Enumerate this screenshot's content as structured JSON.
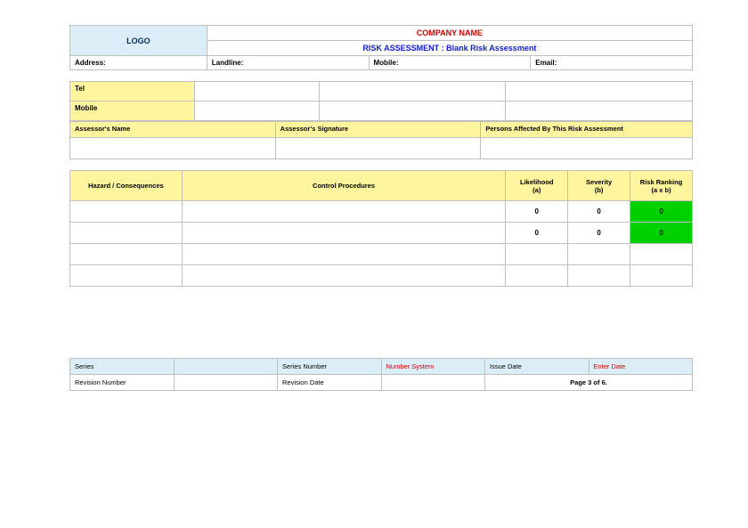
{
  "colors": {
    "header_blue_bg": "#dbeef7",
    "yellow_bg": "#fff59e",
    "green_bg": "#00d000",
    "company_red": "#d40000",
    "title_blue": "#1020d0",
    "logo_text": "#0a2a5a",
    "border": "#bfbfbf"
  },
  "header": {
    "logo_text": "LOGO",
    "company_name": "COMPANY NAME",
    "doc_title": "RISK ASSESSMENT : Blank Risk Assessment",
    "address_label": "Address:",
    "landline_label": "Landline:",
    "mobile_label": "Mobile:",
    "email_label": "Email:"
  },
  "contact_block": {
    "tel_label": "Tel",
    "mobile_label": "Mobile"
  },
  "assessor_block": {
    "name_label": "Assessor's Name",
    "sig_label": "Assessor's Signature",
    "persons_label": "Persons Affected By This Risk Assessment"
  },
  "hazard_table": {
    "type": "table",
    "columns": [
      {
        "key": "hazard",
        "label": "Hazard / Consequences",
        "width_pct": 18
      },
      {
        "key": "control",
        "label": "Control Procedures",
        "width_pct": 52
      },
      {
        "key": "likelihood",
        "label": "Likelihood",
        "sublabel": "(a)",
        "width_pct": 10
      },
      {
        "key": "severity",
        "label": "Severity",
        "sublabel": "(b)",
        "width_pct": 10
      },
      {
        "key": "rank",
        "label": "Risk Ranking",
        "sublabel": "(a x b)",
        "width_pct": 10
      }
    ],
    "rows": [
      {
        "hazard": "",
        "control": "",
        "likelihood": "0",
        "severity": "0",
        "rank": "0",
        "rank_bg": "#00d000"
      },
      {
        "hazard": "",
        "control": "",
        "likelihood": "0",
        "severity": "0",
        "rank": "0",
        "rank_bg": "#00d000"
      },
      {
        "hazard": "",
        "control": "",
        "likelihood": "",
        "severity": "",
        "rank": "",
        "rank_bg": "#ffffff"
      },
      {
        "hazard": "",
        "control": "",
        "likelihood": "",
        "severity": "",
        "rank": "",
        "rank_bg": "#ffffff"
      }
    ]
  },
  "footer": {
    "series_label": "Series",
    "series_value": "",
    "series_num_label": "Series Number",
    "series_num_value": "Number System",
    "issue_date_label": "Issue Date",
    "issue_date_value": "Enter Date",
    "rev_num_label": "Revision Number",
    "rev_num_value": "",
    "rev_date_label": "Revision Date",
    "rev_date_value": "",
    "page_text": "Page 3 of 6."
  }
}
